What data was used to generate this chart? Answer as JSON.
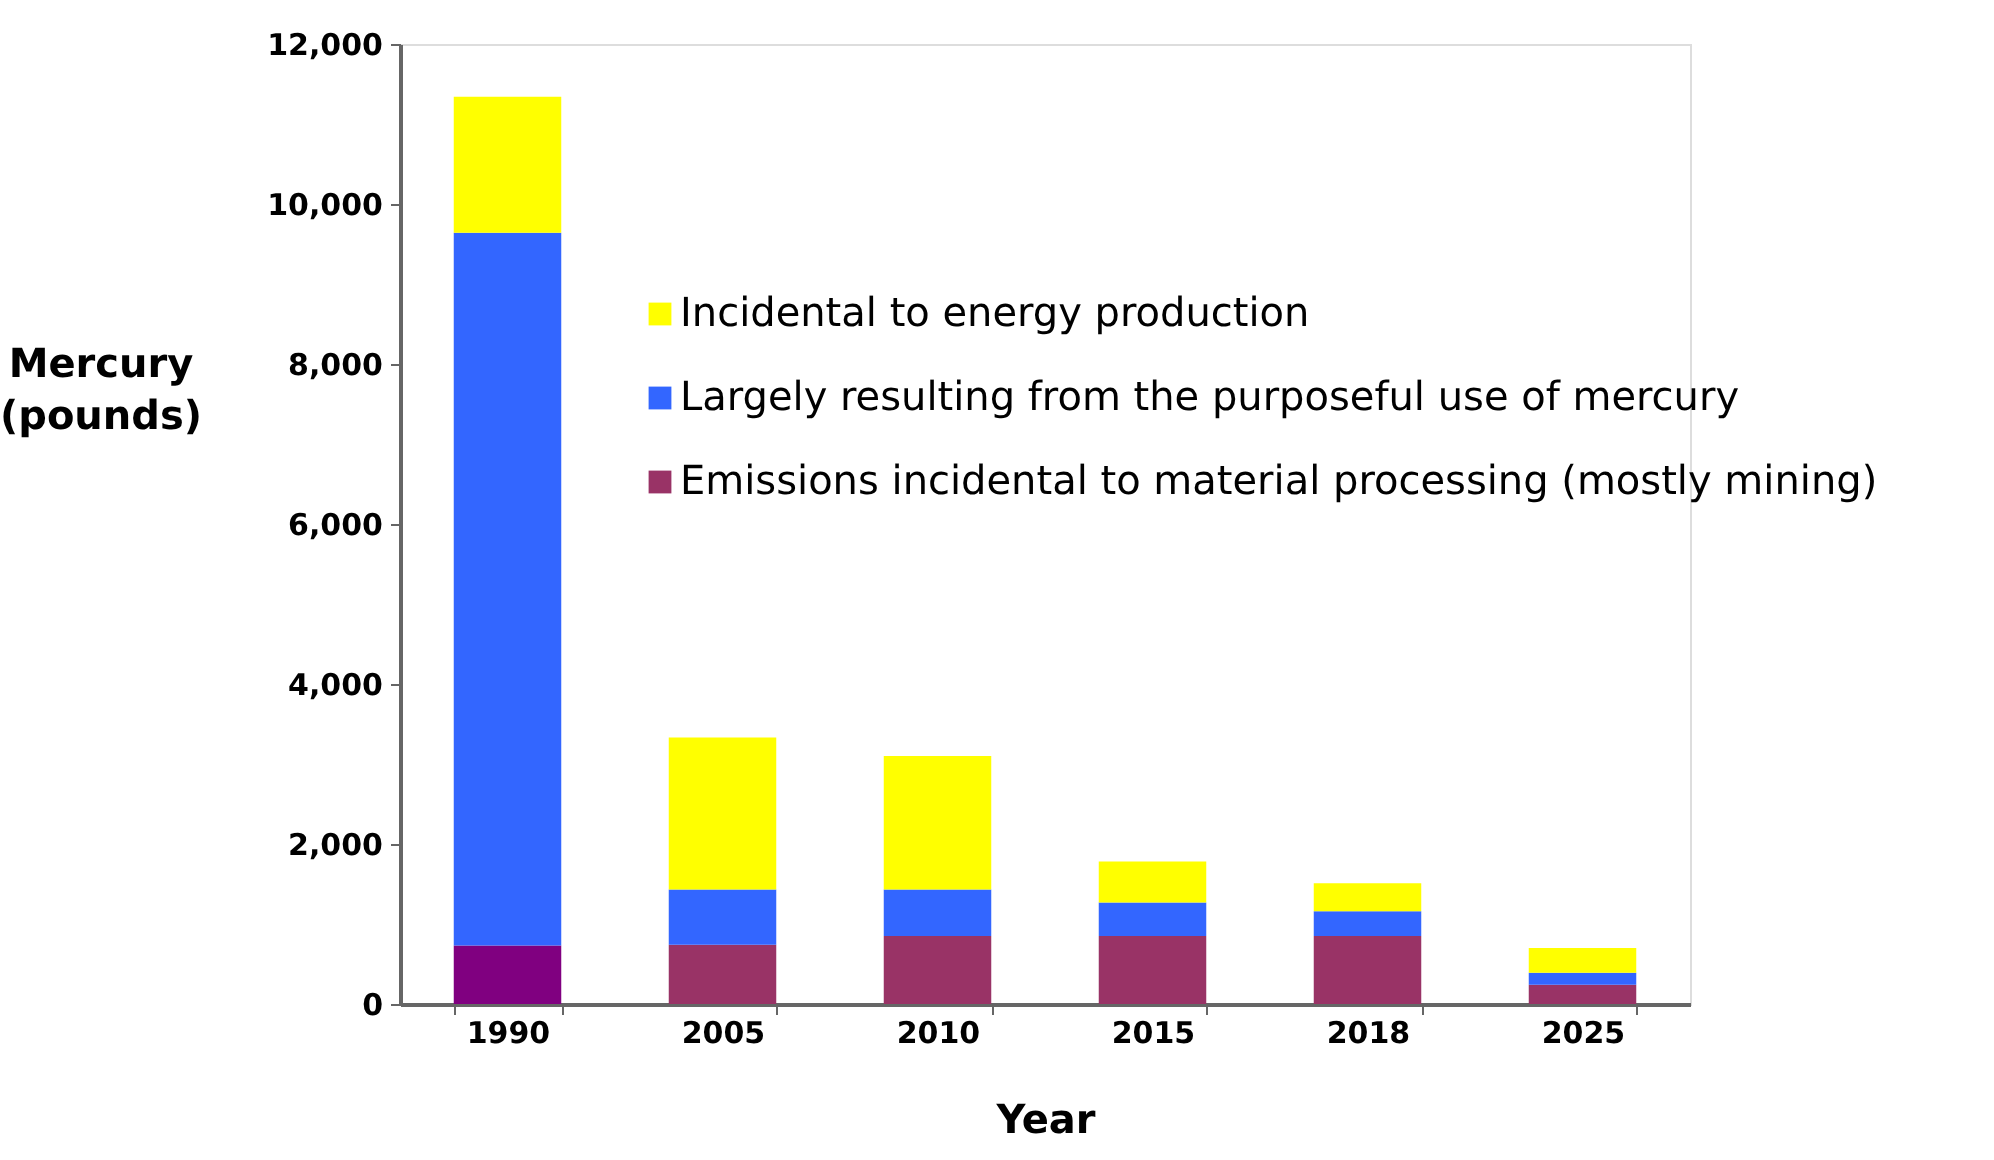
{
  "chart_data": {
    "type": "bar",
    "stacked": true,
    "xlabel": "Year",
    "ylabel": "Mercury (pounds)",
    "categories": [
      "1990",
      "2005",
      "2010",
      "2015",
      "2018",
      "2025"
    ],
    "series": [
      {
        "name": "Emissions incidental to material processing (mostly mining)",
        "color": "#993366",
        "colors": [
          "#800080",
          "#993366",
          "#993366",
          "#993366",
          "#993366",
          "#993366"
        ],
        "values": [
          730,
          740,
          850,
          850,
          850,
          240
        ]
      },
      {
        "name": "Largely resulting from the purposeful use of mercury",
        "color": "#3366ff",
        "values": [
          8910,
          690,
          580,
          420,
          310,
          150
        ]
      },
      {
        "name": "Incidental to energy production",
        "color": "#ffff00",
        "values": [
          1700,
          1900,
          1670,
          510,
          350,
          310
        ]
      }
    ],
    "ylim": [
      0,
      12000
    ],
    "yticks": [
      0,
      {
        "value": 2000,
        "label": "2,000"
      },
      {
        "value": 4000,
        "label": "4,000"
      },
      {
        "value": 6000,
        "label": "6,000"
      },
      {
        "value": 8000,
        "label": "8,000"
      },
      {
        "value": 10000,
        "label": "10,000"
      },
      {
        "value": 12000,
        "label": "12,000"
      }
    ],
    "grid": false,
    "legend": "right"
  }
}
